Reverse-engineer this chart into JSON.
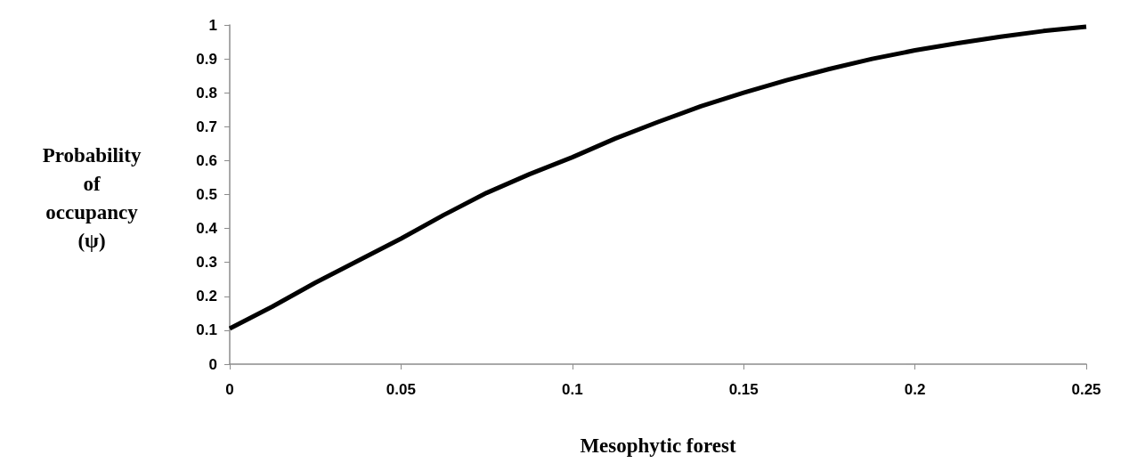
{
  "chart_data": {
    "type": "line",
    "xlabel": "Mesophytic forest",
    "ylabel": "Probability\nof\noccupancy\n(ψ)",
    "x": [
      0,
      0.0125,
      0.025,
      0.0375,
      0.05,
      0.0625,
      0.075,
      0.0875,
      0.1,
      0.1125,
      0.125,
      0.1375,
      0.15,
      0.1625,
      0.175,
      0.1875,
      0.2,
      0.2125,
      0.225,
      0.2375,
      0.25
    ],
    "series": [
      {
        "color": "#000000",
        "values": [
          0.105,
          0.17,
          0.24,
          0.305,
          0.37,
          0.44,
          0.505,
          0.56,
          0.61,
          0.665,
          0.714,
          0.76,
          0.8,
          0.837,
          0.87,
          0.9,
          0.925,
          0.946,
          0.965,
          0.982,
          0.995
        ]
      }
    ],
    "xlim": [
      0,
      0.25
    ],
    "xticks": [
      0,
      0.05,
      0.1,
      0.15,
      0.2,
      0.25
    ],
    "ylim": [
      0,
      1
    ],
    "yticks": [
      0,
      0.1,
      0.2,
      0.3,
      0.4,
      0.5,
      0.6,
      0.7,
      0.8,
      0.9,
      1
    ],
    "grid": false,
    "marker": "none",
    "line_style": "solid"
  }
}
